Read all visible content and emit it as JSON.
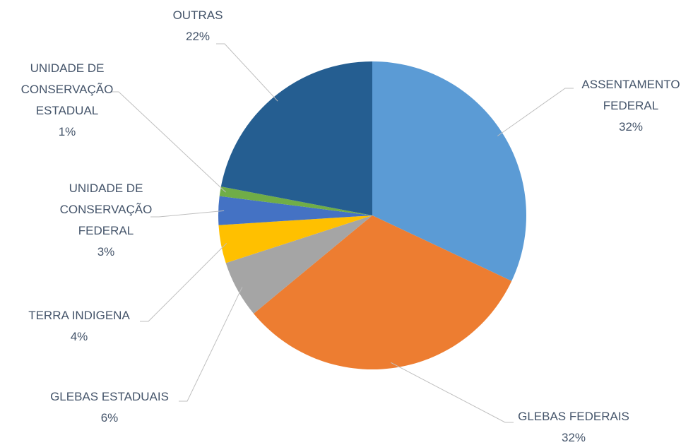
{
  "chart_data": {
    "type": "pie",
    "categories": [
      "ASSENTAMENTO FEDERAL",
      "GLEBAS FEDERAIS",
      "GLEBAS ESTADUAIS",
      "TERRA INDIGENA",
      "UNIDADE DE CONSERVAÇÃO FEDERAL",
      "UNIDADE DE CONSERVAÇÃO ESTADUAL",
      "OUTRAS"
    ],
    "values": [
      32,
      32,
      6,
      4,
      3,
      1,
      22
    ],
    "value_labels": [
      "32%",
      "32%",
      "6%",
      "4%",
      "3%",
      "1%",
      "22%"
    ],
    "colors": [
      "#5b9bd5",
      "#ed7d31",
      "#a5a5a5",
      "#ffc000",
      "#4472c4",
      "#70ad47",
      "#255e91"
    ]
  }
}
